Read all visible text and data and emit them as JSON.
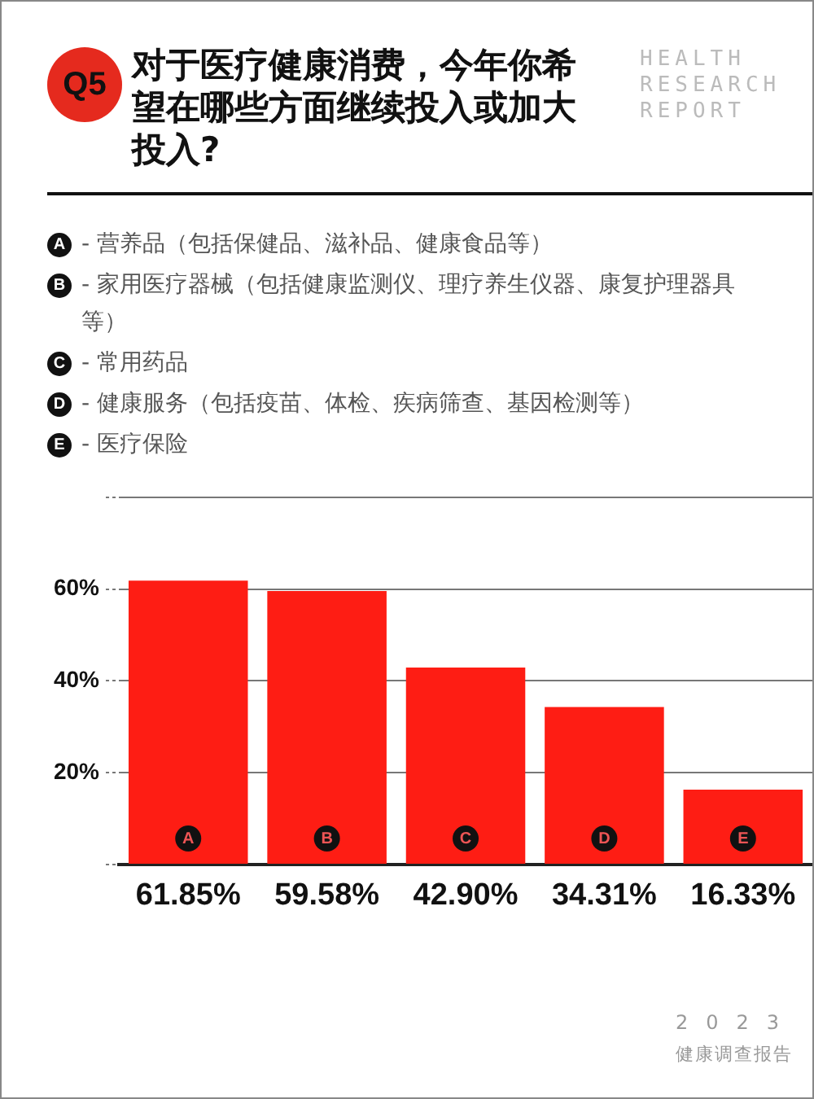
{
  "chart_data": {
    "type": "bar",
    "title": "对于医疗健康消费，今年你希望在哪些方面继续投入或加大投入?",
    "categories": [
      "A",
      "B",
      "C",
      "D",
      "E"
    ],
    "values": [
      61.85,
      59.58,
      42.9,
      34.31,
      16.33
    ],
    "value_labels": [
      "61.85%",
      "59.58%",
      "42.90%",
      "34.31%",
      "16.33%"
    ],
    "color": "#fe1d14",
    "ylim": [
      0,
      80
    ],
    "yticks": [
      {
        "value": 0,
        "label": null
      },
      {
        "value": 20,
        "label": "20%"
      },
      {
        "value": 40,
        "label": "40%"
      },
      {
        "value": 60,
        "label": "60%"
      },
      {
        "value": 80,
        "label": null
      }
    ],
    "grid": "y",
    "legend": false,
    "annotations": [
      "Q5",
      "HEALTH RESEARCH REPORT",
      "A - 营养品（包括保健品、滋补品、健康食品等）",
      "B - 家用医疗器械（包括健康监测仪、理疗养生仪器、康复护理器具等）",
      "C - 常用药品",
      "D - 健康服务（包括疫苗、体检、疾病筛查、基因检测等）",
      "E - 医疗保险",
      "2023",
      "健康调查报告"
    ]
  }
}
